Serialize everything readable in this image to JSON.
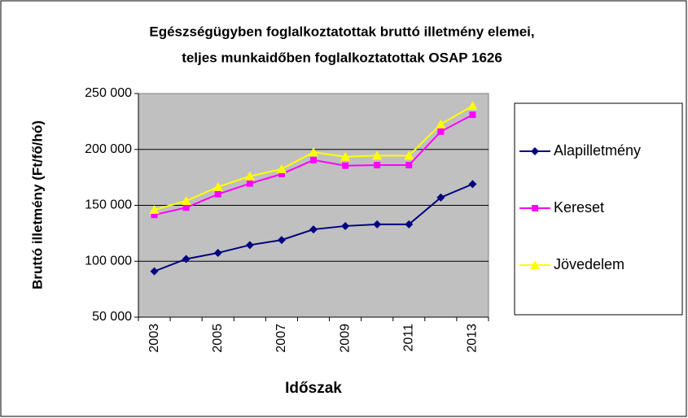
{
  "chart_data": {
    "type": "line",
    "title": "Egészségügyben foglalkoztatottak bruttó illetmény elemei,",
    "subtitle": "teljes munkaidőben foglalkoztatottak OSAP 1626",
    "x_label": "Időszak",
    "y_label": "Bruttó illetmény (Ft/fő/hó)",
    "categories": [
      "2003",
      null,
      "2005",
      null,
      "2007",
      null,
      "2009",
      null,
      "2011",
      null,
      "2013"
    ],
    "series": [
      {
        "name": "Alapilletmény",
        "color": "#000080",
        "marker": "diamond",
        "values": [
          91000,
          102000,
          107500,
          114500,
          119000,
          128500,
          131500,
          133000,
          133000,
          157000,
          169000
        ]
      },
      {
        "name": "Kereset",
        "color": "#ff00ff",
        "marker": "square",
        "values": [
          141500,
          148000,
          160000,
          169500,
          178000,
          190500,
          185500,
          186000,
          186000,
          216000,
          231000
        ]
      },
      {
        "name": "Jövedelem",
        "color": "#ffff00",
        "marker": "triangle",
        "values": [
          146000,
          154000,
          166500,
          176000,
          182500,
          197500,
          193500,
          194500,
          194500,
          222500,
          239000
        ]
      }
    ],
    "ylim": [
      50000,
      250000
    ],
    "yticks": [
      {
        "value": 50000,
        "label": "50 000"
      },
      {
        "value": 100000,
        "label": "100 000"
      },
      {
        "value": 150000,
        "label": "150 000"
      },
      {
        "value": 200000,
        "label": "200 000"
      },
      {
        "value": 250000,
        "label": "250 000"
      }
    ],
    "grid": true,
    "legend": "right"
  }
}
